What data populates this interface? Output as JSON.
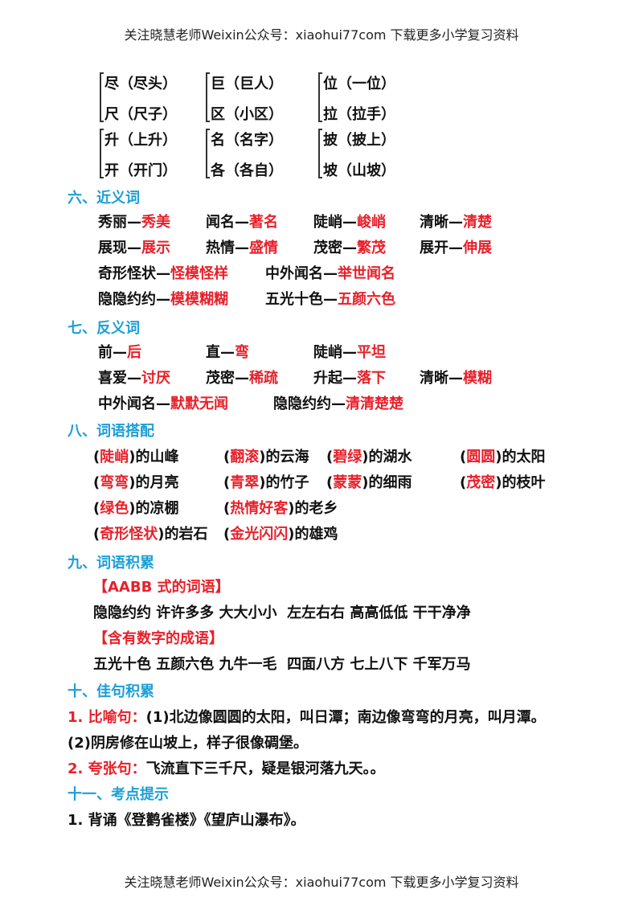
{
  "header": "关注晓慧老师Weixin公众号：xiaohui77com 下载更多小学复习资料",
  "footer": "关注晓慧老师Weixin公众号：xiaohui77com 下载更多小学复习资料",
  "pairs": [
    [
      "尽（尽头）",
      "尺（尺子）"
    ],
    [
      "巨（巨人）",
      "区（小区）"
    ],
    [
      "位（一位）",
      "拉（拉手）"
    ],
    [
      "升（上升）",
      "开（开门）"
    ],
    [
      "名（名字）",
      "各（各自）"
    ],
    [
      "披（披上）",
      "坡（山坡）"
    ]
  ],
  "s6": {
    "title": "六、近义词",
    "items": [
      {
        "w": "秀丽—",
        "a": "秀美"
      },
      {
        "w": "闻名—",
        "a": "著名"
      },
      {
        "w": "陡峭—",
        "a": "峻峭"
      },
      {
        "w": "清晰—",
        "a": "清楚"
      },
      {
        "w": "展现—",
        "a": "展示"
      },
      {
        "w": "热情—",
        "a": "盛情"
      },
      {
        "w": "茂密—",
        "a": "繁茂"
      },
      {
        "w": "展开—",
        "a": "伸展"
      },
      {
        "w": "奇形怪状—",
        "a": "怪模怪样"
      },
      {
        "w": "中外闻名—",
        "a": "举世闻名"
      },
      {
        "w": "隐隐约约—",
        "a": "模模糊糊"
      },
      {
        "w": "五光十色—",
        "a": "五颜六色"
      }
    ]
  },
  "s7": {
    "title": "七、反义词",
    "items": [
      {
        "w": "前—",
        "a": "后"
      },
      {
        "w": "直—",
        "a": "弯"
      },
      {
        "w": "陡峭—",
        "a": "平坦"
      },
      {
        "w": "喜爱—",
        "a": "讨厌"
      },
      {
        "w": "茂密—",
        "a": "稀疏"
      },
      {
        "w": "升起—",
        "a": "落下"
      },
      {
        "w": "清晰—",
        "a": "模糊"
      },
      {
        "w": "中外闻名—",
        "a": "默默无闻"
      },
      {
        "w": "隐隐约约—",
        "a": "清清楚楚"
      }
    ]
  },
  "s8": {
    "title": "八、词语搭配",
    "items": [
      {
        "a": "陡峭",
        "t": "的山峰"
      },
      {
        "a": "翻滚",
        "t": "的云海"
      },
      {
        "a": "碧绿",
        "t": "的湖水"
      },
      {
        "a": "圆圆",
        "t": "的太阳"
      },
      {
        "a": "弯弯",
        "t": "的月亮"
      },
      {
        "a": "青翠",
        "t": "的竹子"
      },
      {
        "a": "蒙蒙",
        "t": "的细雨"
      },
      {
        "a": "茂密",
        "t": "的枝叶"
      },
      {
        "a": "绿色",
        "t": "的凉棚"
      },
      {
        "a": "热情好客",
        "t": "的老乡"
      },
      {
        "a": "奇形怪状",
        "t": "的岩石"
      },
      {
        "a": "金光闪闪",
        "t": "的雄鸡"
      }
    ]
  },
  "s9": {
    "title": "九、词语积累",
    "sub1": "【AABB 式的词语】",
    "line1": "隐隐约约 许许多多 大大小小  左左右右 高高低低 干干净净",
    "sub2": "【含有数字的成语】",
    "line2": "五光十色 五颜六色 九牛一毛  四面八方 七上八下 千军万马"
  },
  "s10": {
    "title": "十、佳句积累",
    "l1_label": "1. 比喻句：",
    "l1_text": "(1)北边像圆圆的太阳，叫日潭；南边像弯弯的月亮，叫月潭。",
    "l2_text": "(2)阴房修在山坡上，样子很像碉堡。",
    "l3_label": "2. 夸张句：",
    "l3_text": "飞流直下三千尺，疑是银河落九天。。"
  },
  "s11": {
    "title": "十一、考点提示",
    "l1": "1. 背诵《登鹳雀楼》《望庐山瀑布》。"
  }
}
